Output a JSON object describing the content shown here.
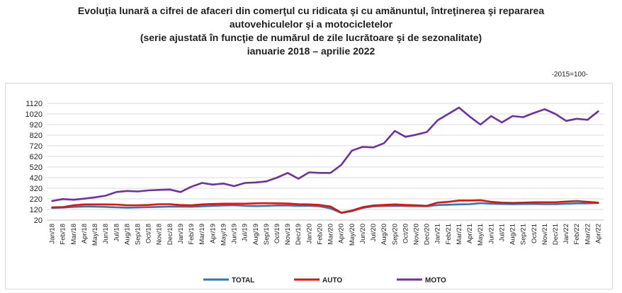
{
  "header": {
    "title_line1": "Evoluţia lunară a cifrei de afaceri din comerţul cu ridicata şi cu amănuntul, întreţinerea şi repararea",
    "title_line2": "autovehiculelor şi a motocicletelor",
    "subtitle": "(serie ajustată în funcţie de numărul de zile lucrătoare şi de sezonalitate)",
    "period": "ianuarie 2018 – aprilie 2022",
    "unit": "-2015=100-"
  },
  "chart_data": {
    "type": "line",
    "title": "Evoluţia lunară a cifrei de afaceri din comerţul cu ridicata şi cu amănuntul, întreţinerea şi repararea autovehiculelor şi a motocicletelor",
    "ylim": [
      20,
      1120
    ],
    "yticks": [
      20,
      120,
      220,
      320,
      420,
      520,
      620,
      720,
      820,
      920,
      1020,
      1120
    ],
    "grid": true,
    "legend": "bottom",
    "categories": [
      "Jan/18",
      "Feb/18",
      "Mar/18",
      "Apr/18",
      "May/18",
      "Jun/18",
      "Jul/18",
      "Aug/18",
      "Sep/18",
      "Oct/18",
      "Nov/18",
      "Dec/18",
      "Jan/19",
      "Feb/19",
      "Mar/19",
      "Apr/19",
      "May/19",
      "Jun/19",
      "Jul/19",
      "Aug/19",
      "Sep/19",
      "Oct/19",
      "Nov/19",
      "Dec/19",
      "Jan/20",
      "Feb/20",
      "Mar/20",
      "Apr/20",
      "May/20",
      "Jun/20",
      "Jul/20",
      "Aug/20",
      "Sep/20",
      "Oct/20",
      "Nov/20",
      "Dec/20",
      "Jan/21",
      "Feb/21",
      "Mar/21",
      "Apr/21",
      "May/21",
      "Jun/21",
      "Jul/21",
      "Aug/21",
      "Sep/21",
      "Oct/21",
      "Nov/21",
      "Dec/21",
      "Jan/22",
      "Feb/22",
      "Mar/22",
      "Apr/22"
    ],
    "series": [
      {
        "name": "TOTAL",
        "color": "#2e75b6",
        "values": [
          135,
          138,
          145,
          148,
          147,
          145,
          140,
          137,
          139,
          142,
          145,
          148,
          147,
          146,
          150,
          155,
          158,
          160,
          155,
          152,
          155,
          158,
          158,
          155,
          155,
          150,
          130,
          88,
          105,
          135,
          150,
          153,
          155,
          153,
          152,
          150,
          162,
          165,
          168,
          170,
          180,
          175,
          172,
          170,
          172,
          172,
          170,
          170,
          175,
          178,
          178,
          180
        ]
      },
      {
        "name": "AUTO",
        "color": "#e3120b",
        "values": [
          140,
          143,
          160,
          168,
          168,
          168,
          166,
          160,
          160,
          163,
          170,
          170,
          162,
          160,
          168,
          172,
          175,
          175,
          175,
          178,
          180,
          178,
          176,
          170,
          168,
          163,
          148,
          90,
          110,
          142,
          158,
          163,
          168,
          163,
          160,
          155,
          185,
          192,
          205,
          205,
          207,
          192,
          185,
          182,
          185,
          188,
          188,
          188,
          195,
          200,
          192,
          185
        ]
      },
      {
        "name": "MOTO",
        "color": "#7030a0",
        "values": [
          200,
          218,
          212,
          222,
          235,
          250,
          285,
          295,
          290,
          300,
          305,
          308,
          285,
          335,
          370,
          355,
          365,
          340,
          370,
          375,
          385,
          420,
          465,
          410,
          470,
          465,
          465,
          540,
          675,
          710,
          705,
          745,
          860,
          805,
          825,
          850,
          960,
          1020,
          1080,
          995,
          920,
          1000,
          940,
          1000,
          990,
          1030,
          1065,
          1020,
          955,
          975,
          965,
          1045
        ]
      }
    ]
  }
}
